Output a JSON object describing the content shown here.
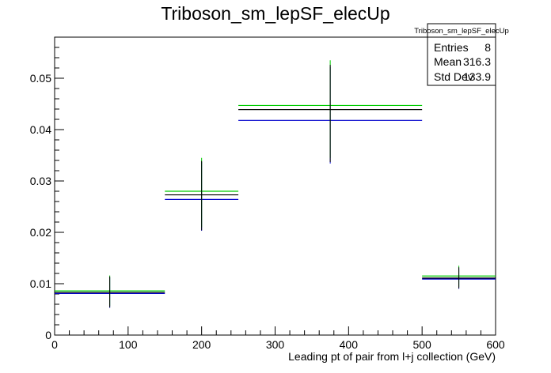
{
  "chart_data": {
    "type": "histogram",
    "title": "Triboson_sm_lepSF_elecUp",
    "xlabel": "Leading pt of pair from l+j collection (GeV)",
    "ylabel": "",
    "xlim": [
      0,
      600
    ],
    "ylim": [
      0,
      0.058
    ],
    "x_ticks": [
      0,
      100,
      200,
      300,
      400,
      500,
      600
    ],
    "y_ticks": [
      0,
      0.01,
      0.02,
      0.03,
      0.04,
      0.05
    ],
    "x_tick_labels": [
      "0",
      "100",
      "200",
      "300",
      "400",
      "500",
      "600"
    ],
    "y_tick_labels": [
      "0",
      "0.01",
      "0.02",
      "0.03",
      "0.04",
      "0.05"
    ],
    "grid": false,
    "bins": [
      {
        "low": 0,
        "high": 150,
        "center": 75
      },
      {
        "low": 150,
        "high": 250,
        "center": 200
      },
      {
        "low": 250,
        "high": 500,
        "center": 375
      },
      {
        "low": 500,
        "high": 600,
        "center": 550
      }
    ],
    "series": [
      {
        "color": "#000000",
        "values": [
          0.0083,
          0.0273,
          0.0439,
          0.0111
        ],
        "err_low": [
          0.0054,
          0.0204,
          0.0337,
          0.0091
        ],
        "err_high": [
          0.0114,
          0.0339,
          0.0526,
          0.0132
        ]
      },
      {
        "color": "#00cc00",
        "values": [
          0.0086,
          0.028,
          0.0447,
          0.0115
        ],
        "err_low": [
          0.0057,
          0.021,
          0.0345,
          0.0094
        ],
        "err_high": [
          0.0116,
          0.0345,
          0.0535,
          0.0135
        ]
      },
      {
        "color": "#0000cc",
        "values": [
          0.0081,
          0.0264,
          0.0418,
          0.0109
        ],
        "err_low": [
          0.0053,
          0.0203,
          0.0334,
          0.009
        ],
        "err_high": [
          0.0112,
          0.0337,
          0.0522,
          0.013
        ]
      }
    ],
    "stats_box": {
      "title": "Triboson_sm_lepSF_elecUp",
      "rows": [
        {
          "label": "Entries",
          "value": "8"
        },
        {
          "label": "Mean",
          "value": "316.3"
        },
        {
          "label": "Std Dev",
          "value": "133.9"
        }
      ],
      "placement": "top-right"
    }
  }
}
